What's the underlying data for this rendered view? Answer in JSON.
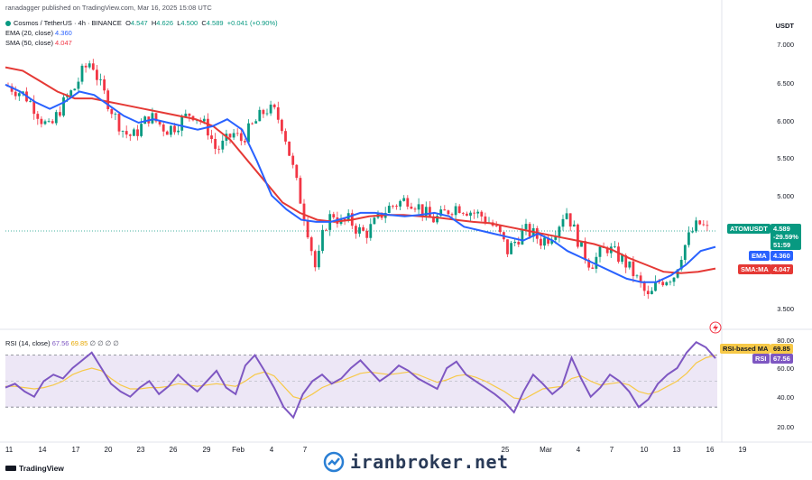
{
  "publisher_line": "ranadagger published on TradingView.com, Mar 16, 2025 15:08 UTC",
  "symbol_line": {
    "name": "Cosmos / TetherUS · 4h · BINANCE",
    "o_label": "O",
    "o": "4.547",
    "h_label": "H",
    "h": "4.626",
    "l_label": "L",
    "l": "4.500",
    "c_label": "C",
    "c": "4.589",
    "change": "+0.041 (+0.90%)"
  },
  "ema_line": {
    "label": "EMA (20, close)",
    "value": "4.360"
  },
  "sma_line": {
    "label": "SMA (50, close)",
    "value": "4.047"
  },
  "rsi_line": {
    "label": "RSI (14, close)",
    "rsi": "67.56",
    "ma": "69.85",
    "extras": "∅ ∅ ∅ ∅"
  },
  "currency": "USDT",
  "price_axis": [
    "7.000",
    "6.500",
    "6.000",
    "5.500",
    "5.000",
    "3.500"
  ],
  "rsi_axis": [
    "80.00",
    "60.00",
    "40.00",
    "20.00"
  ],
  "x_axis": [
    "11",
    "14",
    "17",
    "20",
    "23",
    "26",
    "29",
    "Feb",
    "4",
    "7",
    "25",
    "Mar",
    "4",
    "7",
    "10",
    "13",
    "16",
    "19"
  ],
  "price_tags": {
    "symbol": "ATOMUSDT",
    "price": "4.589",
    "pct": "-29.59%",
    "countdown": "51:59",
    "ema_label": "EMA",
    "ema_value": "4.360",
    "sma_label": "SMA:MA",
    "sma_value": "4.047"
  },
  "rsi_tags": {
    "ma_label": "RSI-based MA",
    "ma_value": "69.85",
    "rsi_label": "RSI",
    "rsi_value": "67.56"
  },
  "watermark": "iranbroker.net",
  "tv_logo": "TradingView",
  "colors": {
    "up": "#089981",
    "down": "#f23645",
    "ema": "#2962ff",
    "sma": "#e53935",
    "rsi": "#7e57c2",
    "rsi_ma": "#f7c948",
    "band": "#ede7f6",
    "dotted": "#089981"
  },
  "chart_data": {
    "type": "candlestick",
    "title": "Cosmos / TetherUS · 4h · BINANCE",
    "price_ylim": [
      3.3,
      7.4
    ],
    "rsi_ylim": [
      10,
      85
    ],
    "rsi_band": [
      30,
      70
    ],
    "last_price": 4.589,
    "x_categories": [
      "11",
      "14",
      "17",
      "20",
      "23",
      "26",
      "29",
      "Feb",
      "4",
      "7",
      "25",
      "Mar",
      "4",
      "7",
      "10",
      "13",
      "16",
      "19"
    ],
    "close_path": [
      6.68,
      6.62,
      6.55,
      6.4,
      6.2,
      6.05,
      6.3,
      6.5,
      6.65,
      6.9,
      7.05,
      6.7,
      6.45,
      6.2,
      6.0,
      5.95,
      6.1,
      6.25,
      6.15,
      6.05,
      6.1,
      6.2,
      6.3,
      6.2,
      6.05,
      5.75,
      5.85,
      6.0,
      5.9,
      6.05,
      6.2,
      6.35,
      6.3,
      6.1,
      5.6,
      5.1,
      4.6,
      4.0,
      4.65,
      4.85,
      4.7,
      4.75,
      4.6,
      4.55,
      4.7,
      4.85,
      4.95,
      5.0,
      5.05,
      4.98,
      4.85,
      4.75,
      4.8,
      4.9,
      4.95,
      4.9,
      4.85,
      4.8,
      4.7,
      4.55,
      4.3,
      4.45,
      4.6,
      4.55,
      4.45,
      4.5,
      4.65,
      4.9,
      4.6,
      4.3,
      4.1,
      4.25,
      4.35,
      4.25,
      4.15,
      4.0,
      3.8,
      3.6,
      3.85,
      3.9,
      3.95,
      4.3,
      4.55,
      4.7,
      4.6
    ],
    "ema_path": [
      6.7,
      6.6,
      6.45,
      6.35,
      6.45,
      6.6,
      6.55,
      6.4,
      6.25,
      6.15,
      6.2,
      6.15,
      6.1,
      6.05,
      6.1,
      6.2,
      6.05,
      5.6,
      5.1,
      4.9,
      4.75,
      4.72,
      4.72,
      4.78,
      4.85,
      4.85,
      4.82,
      4.8,
      4.82,
      4.85,
      4.8,
      4.65,
      4.6,
      4.55,
      4.5,
      4.45,
      4.55,
      4.45,
      4.3,
      4.2,
      4.1,
      4.0,
      3.9,
      3.85,
      3.85,
      3.95,
      4.1,
      4.3,
      4.36
    ],
    "sma_path": [
      6.95,
      6.9,
      6.75,
      6.6,
      6.5,
      6.5,
      6.45,
      6.4,
      6.35,
      6.3,
      6.25,
      6.2,
      6.1,
      5.9,
      5.6,
      5.3,
      5.0,
      4.85,
      4.75,
      4.72,
      4.75,
      4.8,
      4.82,
      4.82,
      4.8,
      4.78,
      4.75,
      4.72,
      4.7,
      4.65,
      4.6,
      4.55,
      4.5,
      4.45,
      4.4,
      4.32,
      4.2,
      4.1,
      4.0,
      3.98,
      4.0,
      4.047
    ],
    "rsi_path": [
      45,
      48,
      42,
      38,
      50,
      55,
      52,
      60,
      66,
      72,
      60,
      48,
      42,
      38,
      45,
      50,
      40,
      46,
      55,
      48,
      42,
      50,
      58,
      45,
      40,
      62,
      70,
      58,
      45,
      30,
      22,
      40,
      50,
      55,
      48,
      52,
      60,
      66,
      58,
      50,
      55,
      62,
      58,
      52,
      48,
      44,
      60,
      65,
      55,
      50,
      45,
      40,
      34,
      26,
      42,
      55,
      48,
      40,
      46,
      68,
      52,
      38,
      45,
      55,
      50,
      42,
      30,
      36,
      48,
      55,
      60,
      72,
      80,
      76,
      67.56
    ],
    "rsi_ma_path": [
      46,
      46,
      45,
      44,
      45,
      47,
      50,
      55,
      58,
      60,
      58,
      52,
      47,
      44,
      44,
      45,
      45,
      46,
      48,
      47,
      46,
      47,
      48,
      47,
      46,
      50,
      55,
      57,
      54,
      46,
      38,
      36,
      40,
      45,
      48,
      50,
      53,
      56,
      57,
      56,
      55,
      56,
      57,
      55,
      52,
      49,
      51,
      54,
      55,
      53,
      50,
      46,
      42,
      37,
      36,
      40,
      44,
      45,
      46,
      52,
      54,
      50,
      47,
      48,
      49,
      47,
      42,
      40,
      42,
      46,
      50,
      56,
      64,
      68,
      69.85
    ],
    "ema_value": 4.36,
    "sma_value": 4.047,
    "rsi_value": 67.56,
    "rsi_ma_value": 69.85,
    "legend": [
      "EMA (20, close)",
      "SMA (50, close)",
      "RSI (14, close)",
      "RSI-based MA"
    ]
  }
}
